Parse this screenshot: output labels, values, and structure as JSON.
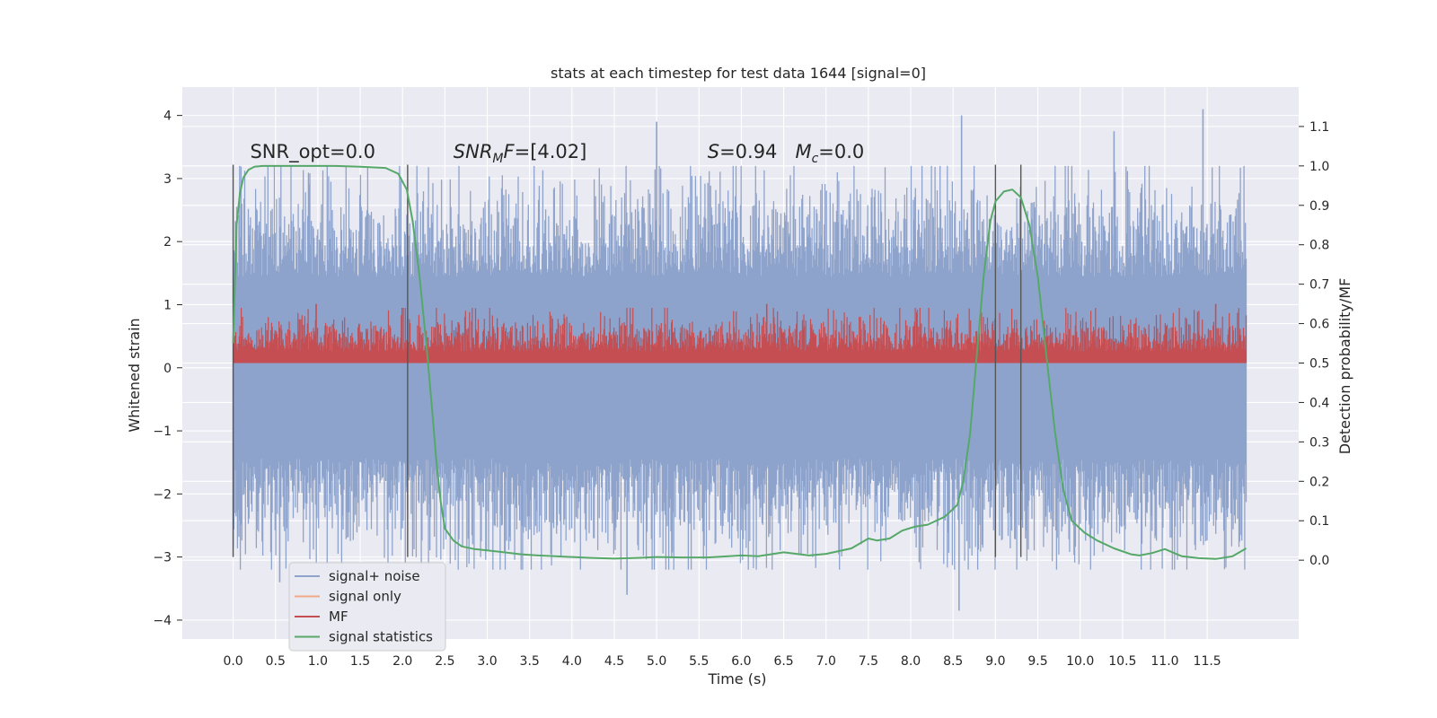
{
  "chart_data": {
    "type": "line",
    "title": "stats at each timestep for test data 1644 [signal=0]",
    "xlabel": "Time (s)",
    "ylabel": "Whitened strain",
    "y2label": "Detection probability/MF",
    "xlim": [
      -0.6,
      12.58
    ],
    "ylim": [
      -4.3,
      4.45
    ],
    "y2lim": [
      -0.2,
      1.2
    ],
    "x_ticks": [
      0.0,
      0.5,
      1.0,
      1.5,
      2.0,
      2.5,
      3.0,
      3.5,
      4.0,
      4.5,
      5.0,
      5.5,
      6.0,
      6.5,
      7.0,
      7.5,
      8.0,
      8.5,
      9.0,
      9.5,
      10.0,
      10.5,
      11.0,
      11.5
    ],
    "x_tick_labels": [
      "0.0",
      "0.5",
      "1.0",
      "1.5",
      "2.0",
      "2.5",
      "3.0",
      "3.5",
      "4.0",
      "4.5",
      "5.0",
      "5.5",
      "6.0",
      "6.5",
      "7.0",
      "7.5",
      "8.0",
      "8.5",
      "9.0",
      "9.5",
      "10.0",
      "10.5",
      "11.0",
      "11.5"
    ],
    "y_ticks": [
      -4,
      -3,
      -2,
      -1,
      0,
      1,
      2,
      3,
      4
    ],
    "y_tick_labels": [
      "−4",
      "−3",
      "−2",
      "−1",
      "0",
      "1",
      "2",
      "3",
      "4"
    ],
    "y2_ticks": [
      0.0,
      0.1,
      0.2,
      0.3,
      0.4,
      0.5,
      0.6,
      0.7,
      0.8,
      0.9,
      1.0,
      1.1
    ],
    "y2_tick_labels": [
      "0.0",
      "0.1",
      "0.2",
      "0.3",
      "0.4",
      "0.5",
      "0.6",
      "0.7",
      "0.8",
      "0.9",
      "1.0",
      "1.1"
    ],
    "grid": true,
    "legend_placement": "lower-left",
    "legend": [
      {
        "label": "signal+ noise",
        "color": "#8ea3cc"
      },
      {
        "label": "signal only",
        "color": "#f2a987"
      },
      {
        "label": "MF",
        "color": "#c44e52"
      },
      {
        "label": "signal statistics",
        "color": "#55a868"
      }
    ],
    "annotations": [
      {
        "text": "SNR_opt=0.0",
        "x": 0.2,
        "y2": 1.0
      },
      {
        "text": "SNR_MF=[4.02]",
        "x": 2.6,
        "y2": 1.0
      },
      {
        "text": "S=0.94   M_c=0.0",
        "x": 5.6,
        "y2": 1.0
      }
    ],
    "vertical_lines": {
      "x": [
        0.0,
        2.06,
        9.0,
        9.3
      ],
      "y_range": [
        -3.0,
        3.22
      ],
      "color": "#555555"
    },
    "signal_noise": {
      "name": "signal+ noise",
      "color": "#8ea3cc",
      "x_range": [
        0.0,
        11.96
      ],
      "band_p10": [
        -1.8,
        1.8
      ],
      "band_p99": [
        -2.9,
        2.9
      ],
      "extreme_max": 4.1,
      "extreme_min": -3.85,
      "notable_peaks": [
        {
          "x": 5.0,
          "y": 3.9
        },
        {
          "x": 8.6,
          "y": 4.0
        },
        {
          "x": 11.45,
          "y": 4.1
        },
        {
          "x": 10.4,
          "y": 3.75
        },
        {
          "x": 4.65,
          "y": -3.6
        },
        {
          "x": 8.57,
          "y": -3.85
        },
        {
          "x": 0.55,
          "y": -3.4
        }
      ]
    },
    "mf": {
      "name": "MF",
      "color": "#c44e52",
      "x_range": [
        0.0,
        11.96
      ],
      "range": [
        0.5,
        0.64
      ],
      "peaks": [
        {
          "x": 0.98,
          "y": 0.65
        },
        {
          "x": 6.3,
          "y": 0.65
        },
        {
          "x": 11.6,
          "y": 0.65
        }
      ]
    },
    "signal_statistics": {
      "name": "signal statistics",
      "color": "#55a868",
      "x": [
        0.0,
        0.04,
        0.08,
        0.12,
        0.18,
        0.25,
        0.35,
        0.5,
        0.8,
        1.0,
        1.2,
        1.5,
        1.8,
        1.95,
        2.05,
        2.12,
        2.2,
        2.28,
        2.35,
        2.4,
        2.45,
        2.5,
        2.6,
        2.7,
        2.85,
        3.0,
        3.2,
        3.4,
        3.6,
        3.8,
        4.0,
        4.2,
        4.5,
        4.8,
        5.0,
        5.3,
        5.6,
        5.85,
        6.0,
        6.2,
        6.5,
        6.8,
        7.0,
        7.3,
        7.5,
        7.6,
        7.75,
        7.9,
        8.05,
        8.2,
        8.4,
        8.55,
        8.62,
        8.7,
        8.78,
        8.86,
        8.94,
        9.0,
        9.1,
        9.2,
        9.3,
        9.4,
        9.5,
        9.6,
        9.7,
        9.8,
        9.9,
        10.05,
        10.2,
        10.4,
        10.6,
        10.7,
        10.85,
        11.0,
        11.2,
        11.4,
        11.6,
        11.8,
        11.96
      ],
      "y": [
        0.55,
        0.85,
        0.93,
        0.97,
        0.99,
        0.998,
        1.0,
        1.0,
        1.0,
        1.0,
        1.0,
        0.998,
        0.995,
        0.98,
        0.94,
        0.86,
        0.72,
        0.55,
        0.38,
        0.25,
        0.15,
        0.08,
        0.05,
        0.035,
        0.028,
        0.025,
        0.02,
        0.015,
        0.012,
        0.01,
        0.008,
        0.006,
        0.004,
        0.006,
        0.008,
        0.007,
        0.007,
        0.01,
        0.012,
        0.01,
        0.02,
        0.012,
        0.016,
        0.03,
        0.055,
        0.05,
        0.055,
        0.075,
        0.085,
        0.09,
        0.11,
        0.14,
        0.2,
        0.32,
        0.52,
        0.72,
        0.86,
        0.91,
        0.935,
        0.94,
        0.92,
        0.85,
        0.72,
        0.52,
        0.33,
        0.18,
        0.1,
        0.07,
        0.05,
        0.03,
        0.015,
        0.012,
        0.018,
        0.028,
        0.01,
        0.005,
        0.003,
        0.01,
        0.03
      ]
    }
  }
}
